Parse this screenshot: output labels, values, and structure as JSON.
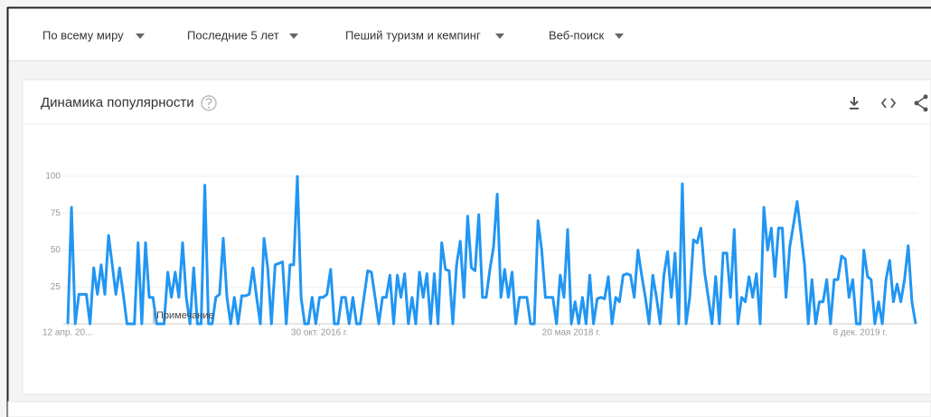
{
  "filters": [
    "По всему миру",
    "Последние 5 лет",
    "Пеший туризм и кемпинг",
    "Веб-поиск"
  ],
  "card": {
    "title": "Динамика популярности"
  },
  "chart_data": {
    "type": "line",
    "annotation": "Примечание",
    "xlim": [
      0,
      229
    ],
    "xticks": [
      {
        "value": 0,
        "label": "12 апр. 20..."
      },
      {
        "value": 68,
        "label": "30 окт. 2016 г."
      },
      {
        "value": 136,
        "label": "20 мая 2018 г."
      },
      {
        "value": 214,
        "label": "8 дек. 2019 г."
      }
    ],
    "ylim": [
      0,
      100
    ],
    "yticks": [
      25,
      50,
      75,
      100
    ],
    "grid": true,
    "series": [
      {
        "color": "#2196f3",
        "values": [
          0,
          79,
          0,
          20,
          20,
          20,
          0,
          38,
          20,
          40,
          20,
          60,
          40,
          20,
          38,
          20,
          0,
          0,
          0,
          55,
          0,
          55,
          18,
          18,
          0,
          0,
          0,
          35,
          18,
          35,
          18,
          55,
          18,
          0,
          38,
          0,
          0,
          94,
          0,
          0,
          18,
          20,
          58,
          18,
          0,
          18,
          0,
          19,
          19,
          20,
          38,
          18,
          0,
          58,
          38,
          0,
          40,
          41,
          42,
          0,
          40,
          40,
          100,
          18,
          0,
          0,
          18,
          0,
          18,
          18,
          20,
          37,
          0,
          0,
          18,
          18,
          0,
          18,
          0,
          0,
          18,
          36,
          35,
          18,
          0,
          18,
          18,
          33,
          0,
          33,
          18,
          34,
          0,
          18,
          0,
          35,
          18,
          34,
          0,
          34,
          0,
          55,
          37,
          36,
          0,
          40,
          56,
          18,
          73,
          38,
          36,
          74,
          18,
          18,
          37,
          52,
          88,
          18,
          37,
          18,
          35,
          0,
          18,
          18,
          18,
          0,
          0,
          70,
          50,
          18,
          18,
          18,
          0,
          33,
          18,
          64,
          0,
          15,
          0,
          18,
          0,
          33,
          0,
          17,
          18,
          17,
          32,
          0,
          18,
          15,
          33,
          34,
          33,
          18,
          50,
          33,
          18,
          0,
          33,
          18,
          0,
          33,
          49,
          18,
          48,
          0,
          95,
          0,
          18,
          57,
          55,
          65,
          35,
          18,
          0,
          32,
          0,
          48,
          48,
          18,
          64,
          0,
          18,
          15,
          32,
          18,
          34,
          0,
          79,
          50,
          65,
          32,
          65,
          65,
          18,
          52,
          67,
          83,
          62,
          40,
          0,
          30,
          0,
          15,
          15,
          30,
          0,
          30,
          30,
          46,
          44,
          18,
          30,
          0,
          0,
          50,
          32,
          30,
          0,
          15,
          0,
          30,
          43,
          15,
          27,
          15,
          30,
          53,
          15,
          0
        ]
      }
    ]
  }
}
